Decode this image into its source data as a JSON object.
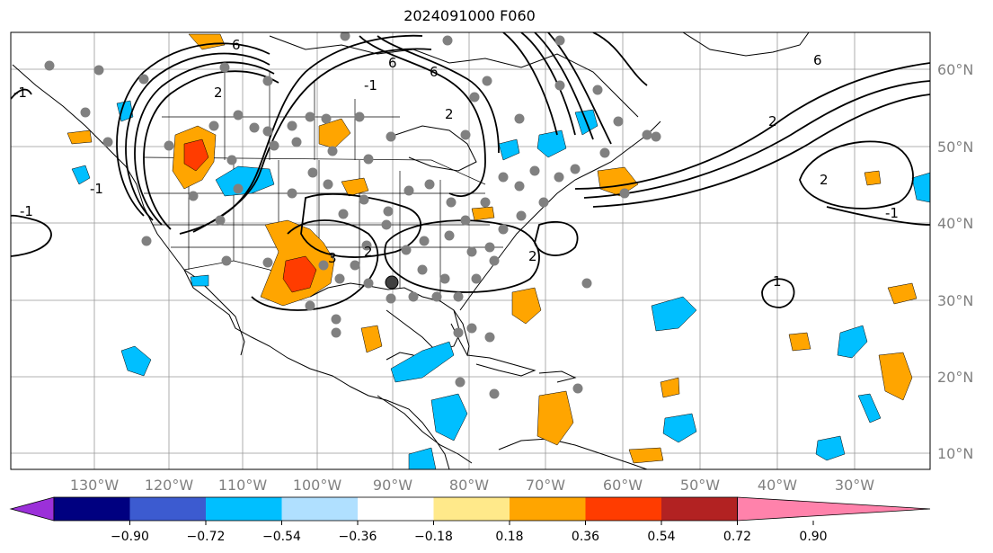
{
  "title": "2024091000 F060",
  "lon_labels": [
    "130°W",
    "120°W",
    "110°W",
    "100°W",
    "90°W",
    "80°W",
    "70°W",
    "60°W",
    "50°W",
    "40°W",
    "30°W"
  ],
  "lat_labels": [
    "60°N",
    "50°N",
    "40°N",
    "30°N",
    "20°N",
    "10°N"
  ],
  "contour_labels": [
    "6",
    "2",
    "6",
    "6",
    "2",
    "2",
    "2",
    "-1",
    "-1",
    "-1",
    "2",
    "6",
    "1",
    "3",
    "2",
    "-1",
    "-1"
  ],
  "colorbar": {
    "ticks": [
      "−0.90",
      "−0.72",
      "−0.54",
      "−0.36",
      "−0.18",
      "0.18",
      "0.36",
      "0.54",
      "0.72",
      "0.90"
    ],
    "colors": [
      "#9b30d9",
      "#000080",
      "#3c5bd0",
      "#00bfff",
      "#b0e0ff",
      "#ffffff",
      "#ffe98a",
      "#ffa500",
      "#ff3c00",
      "#b22222",
      "#ff82ab"
    ]
  }
}
